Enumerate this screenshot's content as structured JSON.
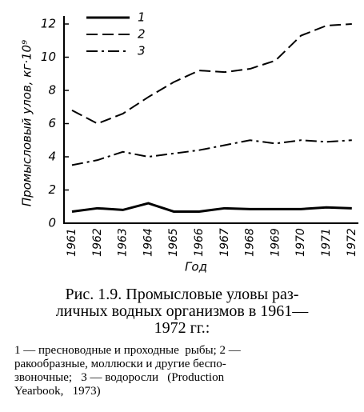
{
  "chart_data": {
    "type": "line",
    "ylabel": "Промысловый улов, кг·10⁹",
    "xlabel": "Год",
    "categories": [
      "1961",
      "1962",
      "1963",
      "1964",
      "1965",
      "1966",
      "1967",
      "1968",
      "1969",
      "1970",
      "1971",
      "1972"
    ],
    "series": [
      {
        "name": "1",
        "color": "#000000",
        "dash": "solid",
        "values": [
          0.7,
          0.9,
          0.8,
          1.2,
          0.7,
          0.7,
          0.9,
          0.85,
          0.85,
          0.85,
          0.95,
          0.9
        ]
      },
      {
        "name": "2",
        "color": "#000000",
        "dash": "dashed",
        "values": [
          6.8,
          6.0,
          6.6,
          7.6,
          8.5,
          9.2,
          9.1,
          9.3,
          9.8,
          11.3,
          11.9,
          12.0
        ]
      },
      {
        "name": "3",
        "color": "#000000",
        "dash": "dashdot",
        "values": [
          3.5,
          3.8,
          4.3,
          4.0,
          4.2,
          4.4,
          4.7,
          5.0,
          4.8,
          5.0,
          4.9,
          5.0
        ]
      }
    ],
    "ylim": [
      0,
      12
    ],
    "yticks": [
      0,
      2,
      4,
      6,
      8,
      10,
      12
    ],
    "grid": false,
    "legend": "top-left"
  },
  "caption": {
    "title_lines": [
      "Рис. 1.9. Промысловые уловы раз-",
      "личных водных организмов в 1961—",
      "1972 гг.:"
    ],
    "note_lines": [
      "1 — пресноводные и проходные  рыбы; 2 —",
      "ракообразные, моллюски и другие беспо-",
      "звоночные;   3 — водоросли   (Production",
      "Yearbook,   1973)"
    ]
  }
}
